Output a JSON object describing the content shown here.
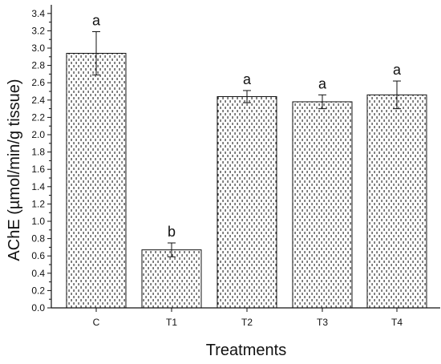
{
  "chart_data": {
    "type": "bar",
    "title": "",
    "xlabel": "Treatments",
    "ylabel": "AChE (µmol/min/g tissue)",
    "categories": [
      "C",
      "T1",
      "T2",
      "T3",
      "T4"
    ],
    "values": [
      2.94,
      0.67,
      2.44,
      2.38,
      2.46
    ],
    "error": [
      0.25,
      0.08,
      0.07,
      0.08,
      0.16
    ],
    "significance_labels": [
      "a",
      "b",
      "a",
      "a",
      "a"
    ],
    "ylim": [
      0.0,
      3.5
    ],
    "yticks": [
      "0.0",
      "0.2",
      "0.4",
      "0.6",
      "0.8",
      "1.0",
      "1.2",
      "1.4",
      "1.6",
      "1.8",
      "2.0",
      "2.2",
      "2.4",
      "2.6",
      "2.8",
      "3.0",
      "3.2",
      "3.4"
    ],
    "grid": false,
    "legend": "none",
    "bar_pattern": "dotted",
    "colors": {
      "bar_fill": "#ffffff",
      "bar_pattern": "#333333",
      "bar_edge": "#111111",
      "axis": "#111111",
      "text": "#111111"
    }
  }
}
